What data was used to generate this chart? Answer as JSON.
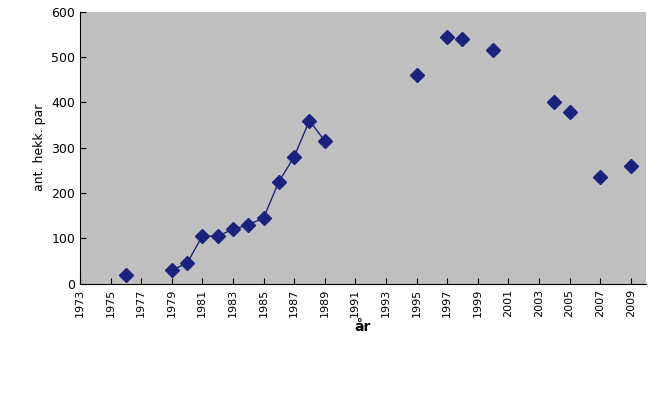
{
  "connected_years": [
    1979,
    1980,
    1981,
    1982,
    1983,
    1984,
    1985,
    1986,
    1987,
    1988,
    1989
  ],
  "connected_vals": [
    30,
    45,
    105,
    105,
    120,
    130,
    145,
    225,
    280,
    360,
    315
  ],
  "isolated_years": [
    1976,
    1995,
    1997,
    1998,
    2000,
    2004,
    2005,
    2007,
    2009
  ],
  "isolated_vals": [
    20,
    460,
    545,
    540,
    515,
    400,
    380,
    235,
    260
  ],
  "xlabel": "år",
  "ylabel": "ant. hekk. par",
  "ylim": [
    0,
    600
  ],
  "xlim": [
    1973,
    2010
  ],
  "xticks": [
    1973,
    1975,
    1977,
    1979,
    1981,
    1983,
    1985,
    1987,
    1989,
    1991,
    1993,
    1995,
    1997,
    1999,
    2001,
    2003,
    2005,
    2007,
    2009
  ],
  "yticks": [
    0,
    100,
    200,
    300,
    400,
    500,
    600
  ],
  "marker_color": "#1a237e",
  "line_color": "#1a237e",
  "plot_bg_color": "#c0c0c0",
  "fig_bg_color": "#ffffff",
  "marker_size": 7,
  "linewidth": 1.0
}
